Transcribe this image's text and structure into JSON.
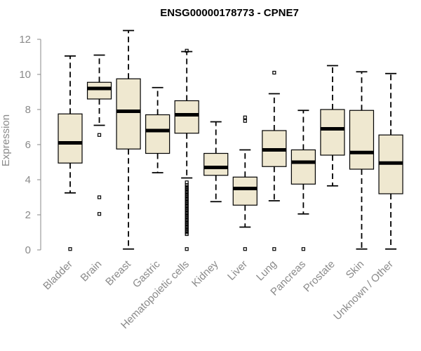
{
  "chart_data": {
    "type": "boxplot",
    "title": "ENSG00000178773 - CPNE7",
    "xlabel": "",
    "ylabel": "Expression",
    "ylim": [
      0,
      12.5
    ],
    "yticks": [
      0,
      2,
      4,
      6,
      8,
      10,
      12
    ],
    "box_color": "#efe8d0",
    "categories": [
      "Bladder",
      "Brain",
      "Breast",
      "Gastric",
      "Hematopoietic cells",
      "Kidney",
      "Liver",
      "Lung",
      "Pancreas",
      "Prostate",
      "Skin",
      "Unknown / Other"
    ],
    "boxes": [
      {
        "whisker_low": 3.25,
        "q1": 4.95,
        "median": 6.1,
        "q3": 7.75,
        "whisker_high": 11.05,
        "outliers": [
          0.05
        ]
      },
      {
        "whisker_low": 7.1,
        "q1": 8.6,
        "median": 9.2,
        "q3": 9.55,
        "whisker_high": 11.1,
        "outliers": [
          6.55,
          3.0,
          2.05
        ]
      },
      {
        "whisker_low": 0.05,
        "q1": 5.75,
        "median": 7.9,
        "q3": 9.75,
        "whisker_high": 12.5,
        "outliers": []
      },
      {
        "whisker_low": 4.4,
        "q1": 5.5,
        "median": 6.8,
        "q3": 7.7,
        "whisker_high": 9.25,
        "outliers": []
      },
      {
        "whisker_low": 4.1,
        "q1": 6.65,
        "median": 7.7,
        "q3": 8.5,
        "whisker_high": 11.3,
        "outliers": [
          11.35,
          0.05,
          0.9,
          1.0,
          1.1,
          1.2,
          1.3,
          1.4,
          1.5,
          1.6,
          1.7,
          1.8,
          1.9,
          2.0,
          2.1,
          2.2,
          2.3,
          2.4,
          2.5,
          2.6,
          2.7,
          2.8,
          2.9,
          3.0,
          3.1,
          3.2,
          3.3,
          3.4,
          3.5,
          3.6,
          3.7,
          3.85
        ]
      },
      {
        "whisker_low": 2.75,
        "q1": 4.25,
        "median": 4.7,
        "q3": 5.5,
        "whisker_high": 7.3,
        "outliers": []
      },
      {
        "whisker_low": 1.3,
        "q1": 2.55,
        "median": 3.5,
        "q3": 4.15,
        "whisker_high": 5.7,
        "outliers": [
          7.55,
          7.35,
          0.05
        ]
      },
      {
        "whisker_low": 2.8,
        "q1": 4.75,
        "median": 5.7,
        "q3": 6.8,
        "whisker_high": 8.9,
        "outliers": [
          10.1,
          0.05
        ]
      },
      {
        "whisker_low": 2.05,
        "q1": 3.75,
        "median": 5.0,
        "q3": 5.7,
        "whisker_high": 7.95,
        "outliers": [
          0.05
        ]
      },
      {
        "whisker_low": 3.65,
        "q1": 5.4,
        "median": 6.9,
        "q3": 8.0,
        "whisker_high": 10.5,
        "outliers": []
      },
      {
        "whisker_low": 0.05,
        "q1": 4.6,
        "median": 5.55,
        "q3": 7.95,
        "whisker_high": 10.15,
        "outliers": []
      },
      {
        "whisker_low": 0.05,
        "q1": 3.2,
        "median": 4.95,
        "q3": 6.55,
        "whisker_high": 10.05,
        "outliers": []
      }
    ]
  }
}
